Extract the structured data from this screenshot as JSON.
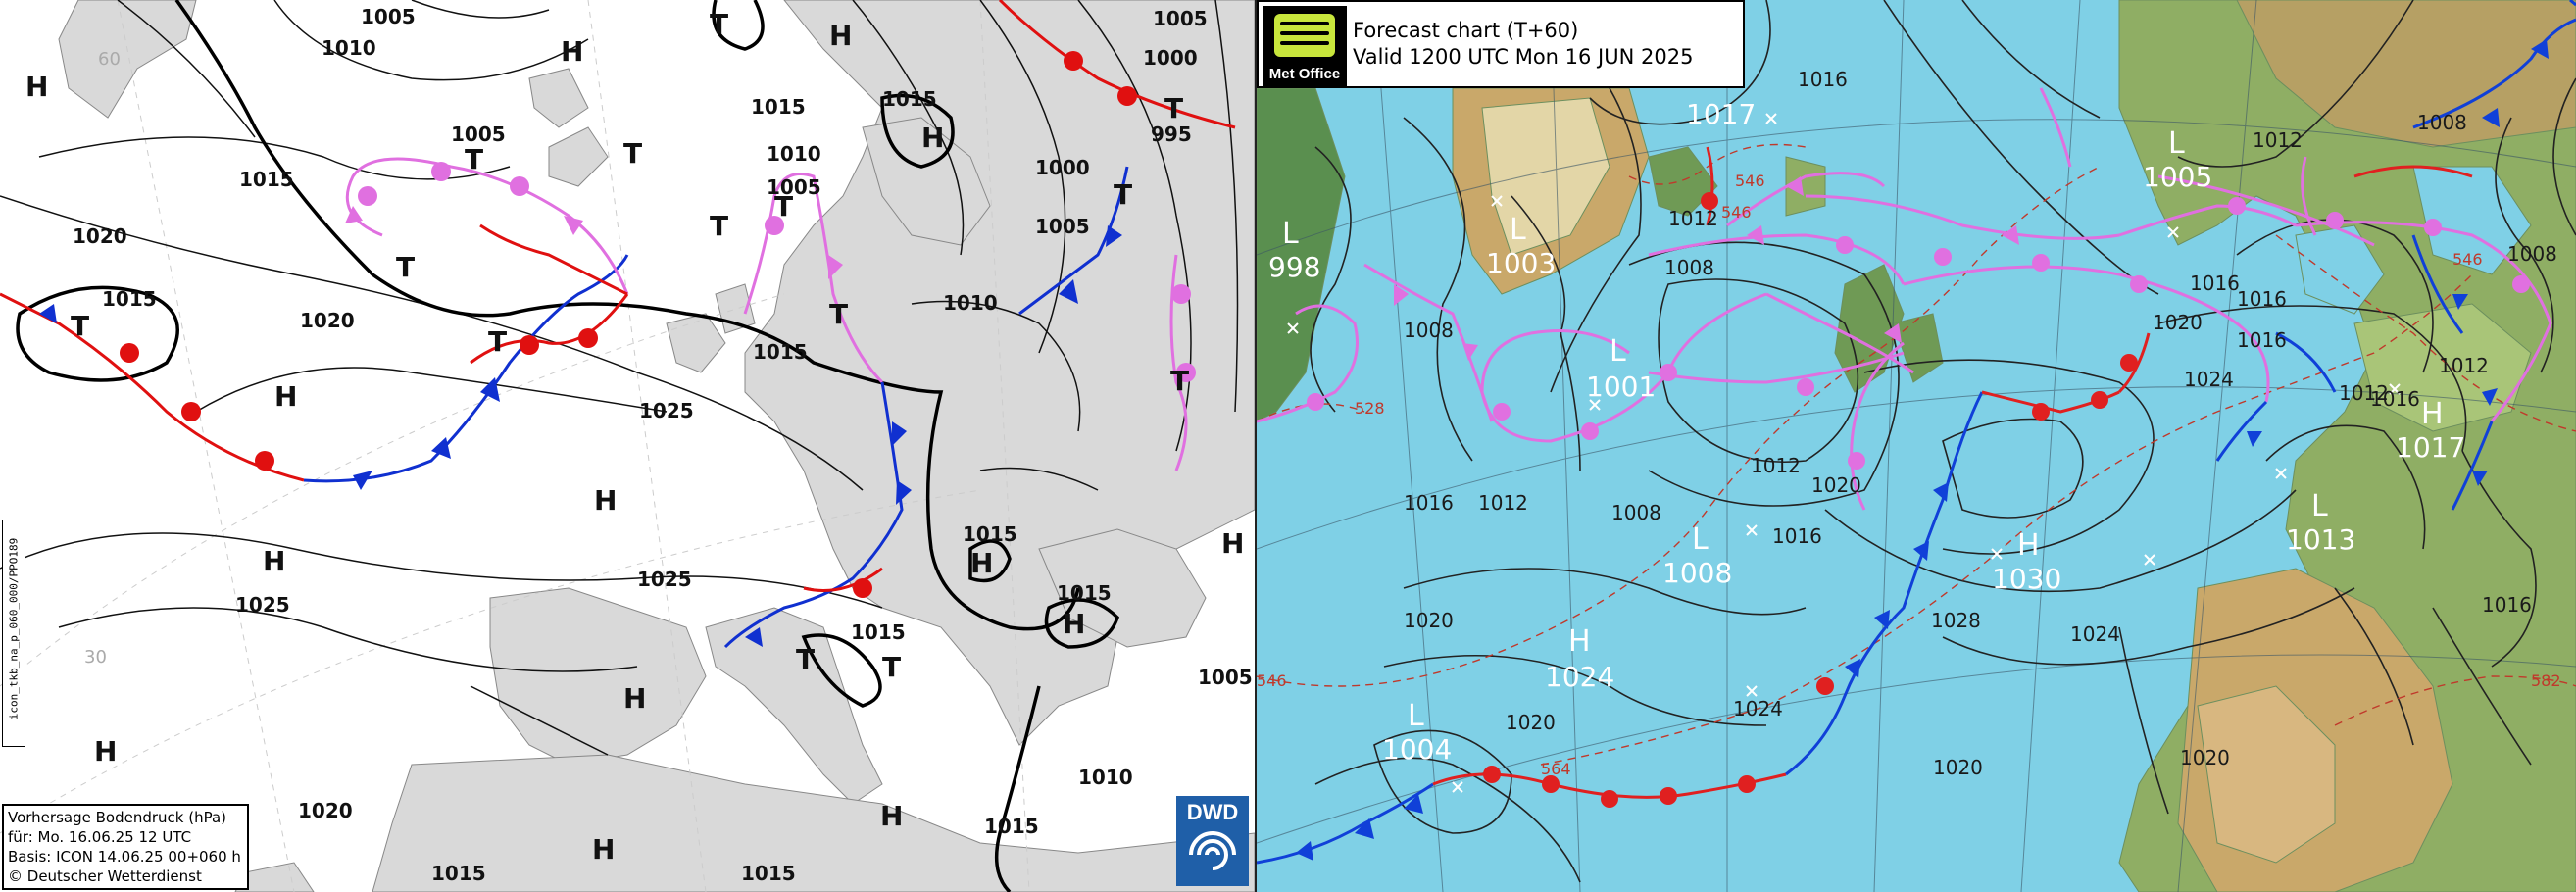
{
  "dwd": {
    "info": {
      "line1": "Vorhersage Bodendruck (hPa)",
      "line2": "für:  Mo. 16.06.25  12 UTC",
      "line3": "Basis: ICON  14.06.25 00+060 h",
      "line4": "© Deutscher Wetterdienst"
    },
    "vertical_id": "icon_tkb_na_p_060_000/PPO189",
    "logo_text": "DWD",
    "grid_labels": [
      "60",
      "30"
    ],
    "isobar_labels": [
      "1005",
      "1010",
      "1015",
      "1020",
      "1015",
      "1005",
      "1025",
      "1020",
      "1025",
      "1025",
      "1015",
      "1005",
      "1010",
      "1015",
      "1000",
      "1005",
      "1010",
      "1015",
      "1015",
      "1015",
      "1015",
      "1010",
      "1005",
      "1015",
      "1020",
      "1005",
      "995",
      "1000",
      "1015",
      "1015"
    ],
    "centers": [
      "H",
      "H",
      "T",
      "H",
      "T",
      "T",
      "T",
      "T",
      "T",
      "T",
      "T",
      "T",
      "H",
      "H",
      "H",
      "H",
      "H",
      "H",
      "H",
      "T",
      "T",
      "T",
      "H",
      "H",
      "H",
      "H",
      "T",
      "T"
    ]
  },
  "metoffice": {
    "title_line1": "Forecast chart (T+60)",
    "title_line2": "Valid 1200 UTC Mon 16 JUN 2025",
    "logo_text": "Met Office",
    "centers": [
      {
        "type": "L",
        "pressure": "998"
      },
      {
        "type": "L",
        "pressure": "1003"
      },
      {
        "type": "L",
        "pressure": "1001"
      },
      {
        "type": "L",
        "pressure": "1008"
      },
      {
        "type": "H",
        "pressure": "1024"
      },
      {
        "type": "L",
        "pressure": "1004"
      },
      {
        "type": "H",
        "pressure": "1030"
      },
      {
        "type": "L",
        "pressure": "1005"
      },
      {
        "type": "H",
        "pressure": "1017"
      },
      {
        "type": "L",
        "pressure": "1013"
      }
    ],
    "top_pressure": "1017",
    "isobar_labels": [
      "1016",
      "1012",
      "1008",
      "1008",
      "1016",
      "1012",
      "1008",
      "1012",
      "1016",
      "1020",
      "1020",
      "1020",
      "1024",
      "1028",
      "1024",
      "1020",
      "1020",
      "1016",
      "1012",
      "1016",
      "1024",
      "1016",
      "1008",
      "1012",
      "1008",
      "1016",
      "1016",
      "1012",
      "1020"
    ],
    "thickness_labels": [
      "546",
      "546",
      "528",
      "546",
      "564",
      "582",
      "546"
    ]
  },
  "colors": {
    "warm_front": "#e01010",
    "cold_front": "#1030d0",
    "occluded_front": "#e070e0",
    "mo_sea": "#7fd0e6",
    "mo_land": "#d8b780"
  }
}
